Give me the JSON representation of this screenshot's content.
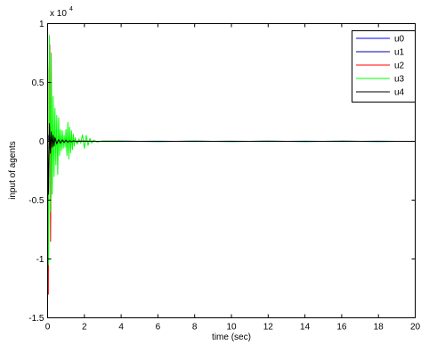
{
  "chart_data": {
    "type": "line",
    "title": "",
    "xlabel": "time (sec)",
    "ylabel": "input  of agents",
    "y_multiplier_label": "x 10",
    "y_multiplier_exp": "4",
    "xlim": [
      0,
      20
    ],
    "ylim": [
      -1.5,
      1
    ],
    "x_ticks": [
      0,
      2,
      4,
      6,
      8,
      10,
      12,
      14,
      16,
      18,
      20
    ],
    "y_ticks": [
      -1.5,
      -1,
      -0.5,
      0,
      0.5,
      1
    ],
    "x_tick_labels": [
      "0",
      "2",
      "4",
      "6",
      "8",
      "10",
      "12",
      "14",
      "16",
      "18",
      "20"
    ],
    "y_tick_labels": [
      "-1.5",
      "-1",
      "-0.5",
      "0",
      "0.5",
      "1"
    ],
    "grid": false,
    "legend_position": "top-right",
    "series": [
      {
        "name": "u0",
        "color": "#0000ff",
        "x": [
          0,
          0.05,
          0.1,
          0.15,
          0.2,
          0.3,
          0.4,
          0.5,
          0.7,
          1.0,
          1.3,
          1.6,
          2.0,
          2.5,
          3,
          4,
          5,
          6,
          7,
          8,
          9,
          10,
          11,
          12,
          13,
          14,
          15,
          16,
          17,
          18,
          19,
          20
        ],
        "y": [
          0,
          0.03,
          -0.02,
          0.015,
          -0.01,
          0.008,
          -0.005,
          0.004,
          -0.003,
          0.002,
          0.002,
          -0.001,
          0.001,
          0,
          0,
          0.0015,
          0,
          -0.0015,
          0,
          0.0015,
          0,
          -0.0015,
          0,
          0.0015,
          0,
          -0.0015,
          0,
          0.0015,
          0,
          -0.0015,
          0,
          0
        ]
      },
      {
        "name": "u1",
        "color": "#0000aa",
        "x": [
          0,
          0.05,
          0.1,
          0.15,
          0.2,
          0.3,
          0.4,
          0.5,
          0.7,
          1.0,
          1.3,
          1.6,
          2.0,
          2.5,
          3,
          4,
          5,
          6,
          7,
          8,
          9,
          10,
          11,
          12,
          13,
          14,
          15,
          16,
          17,
          18,
          19,
          20
        ],
        "y": [
          0,
          0.05,
          -0.06,
          0.03,
          -0.02,
          0.012,
          -0.008,
          0.006,
          -0.004,
          0.003,
          0.002,
          -0.002,
          0.001,
          0,
          0,
          -0.001,
          0,
          0.001,
          0,
          -0.001,
          0,
          0.001,
          0,
          -0.001,
          0,
          0.001,
          0,
          -0.001,
          0,
          0.001,
          0,
          0
        ]
      },
      {
        "name": "u2",
        "color": "#ff0000",
        "x": [
          0,
          0.04,
          0.08,
          0.12,
          0.16,
          0.2,
          0.25,
          0.3,
          0.35,
          0.4,
          0.5,
          0.6,
          0.7,
          0.8,
          1.0,
          1.2,
          1.5,
          2.0,
          2.5,
          3,
          5,
          10,
          15,
          20
        ],
        "y": [
          0,
          -1.3,
          0.6,
          0.82,
          -0.85,
          0.3,
          -0.25,
          0.12,
          -0.08,
          0.05,
          -0.03,
          0.02,
          -0.015,
          0.01,
          0.006,
          -0.004,
          0.002,
          0.001,
          0,
          0,
          0,
          0,
          0,
          0
        ]
      },
      {
        "name": "u3",
        "color": "#00ff00",
        "x": [
          0,
          0.05,
          0.1,
          0.15,
          0.2,
          0.25,
          0.3,
          0.35,
          0.4,
          0.45,
          0.5,
          0.55,
          0.6,
          0.65,
          0.7,
          0.75,
          0.8,
          0.85,
          0.9,
          0.95,
          1.0,
          1.05,
          1.1,
          1.15,
          1.2,
          1.25,
          1.3,
          1.35,
          1.4,
          1.45,
          1.5,
          1.6,
          1.7,
          1.8,
          1.9,
          2.0,
          2.1,
          2.2,
          2.3,
          2.4,
          2.5,
          2.7,
          3.0,
          4,
          5,
          6,
          7,
          8,
          9,
          10,
          11,
          12,
          13,
          14,
          15,
          16,
          17,
          18,
          19,
          20
        ],
        "y": [
          0,
          -1.05,
          0.9,
          -0.6,
          0.75,
          -0.45,
          0.38,
          -0.3,
          0.28,
          -0.2,
          0.22,
          -0.28,
          0.2,
          -0.12,
          0.1,
          -0.08,
          0.09,
          -0.06,
          0.05,
          -0.05,
          0.1,
          -0.12,
          0.16,
          -0.15,
          0.12,
          -0.1,
          0.09,
          -0.07,
          0.06,
          -0.04,
          0.03,
          -0.025,
          0.02,
          -0.015,
          0.055,
          -0.06,
          0.05,
          -0.035,
          0.025,
          -0.015,
          0.01,
          -0.006,
          0.004,
          0.002,
          0,
          -0.002,
          0,
          0.002,
          0,
          -0.002,
          0,
          0.002,
          0,
          -0.002,
          0,
          0.002,
          0,
          -0.002,
          0,
          0
        ]
      },
      {
        "name": "u4",
        "color": "#000000",
        "x": [
          0,
          0.05,
          0.1,
          0.15,
          0.2,
          0.25,
          0.3,
          0.35,
          0.4,
          0.5,
          0.6,
          0.7,
          0.8,
          0.9,
          1.0,
          1.1,
          1.2,
          1.3,
          1.4,
          1.6,
          1.8,
          2.0,
          2.5,
          3,
          5,
          10,
          15,
          20
        ],
        "y": [
          0,
          -0.45,
          0.15,
          -0.1,
          0.08,
          -0.05,
          0.05,
          -0.04,
          0.03,
          -0.02,
          0.015,
          -0.015,
          0.012,
          -0.01,
          0.01,
          -0.008,
          0.006,
          -0.005,
          0.004,
          -0.003,
          0.002,
          0.001,
          0,
          0,
          0,
          0,
          0,
          0
        ]
      }
    ]
  }
}
